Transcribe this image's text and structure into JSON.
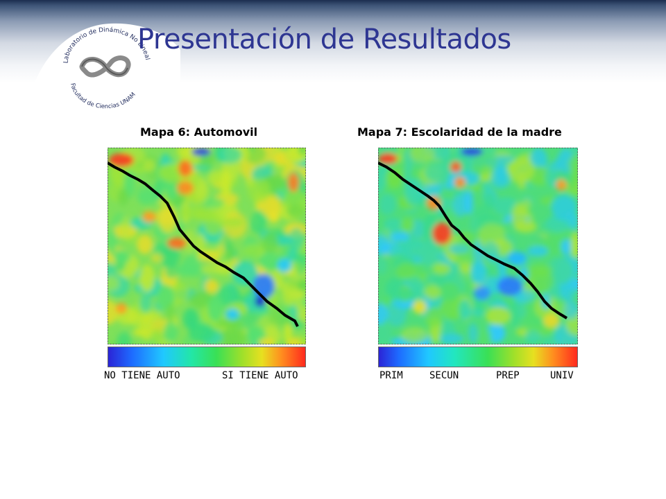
{
  "title": "Presentación de Resultados",
  "logo": {
    "top_text": "Laboratorio de Dinámica No Lineal",
    "bottom_text": "Facultad de Ciencias UNAM"
  },
  "maps": [
    {
      "title": "Mapa 6: Automovil",
      "legend_labels": [
        "NO TIENE AUTO",
        "SI TIENE AUTO"
      ]
    },
    {
      "title": "Mapa 7: Escolaridad de la madre",
      "legend_labels": [
        "PRIM",
        "SECUN",
        "PREP",
        "UNIV"
      ]
    }
  ]
}
